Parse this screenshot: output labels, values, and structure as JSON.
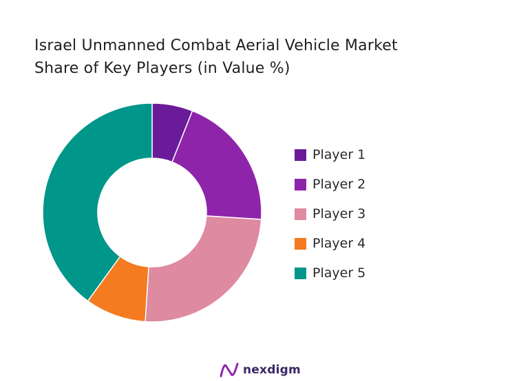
{
  "chart_data": {
    "type": "pie",
    "variant": "donut",
    "title_lines": [
      "Israel Unmanned Combat Aerial Vehicle Market",
      "Share of Key Players (in Value %)"
    ],
    "start_angle_deg": 0,
    "direction": "clockwise",
    "legend_position": "right",
    "slices": [
      {
        "label": "Player 1",
        "value": 6,
        "color": "#6a1b9a"
      },
      {
        "label": "Player 2",
        "value": 20,
        "color": "#8e24aa"
      },
      {
        "label": "Player 3",
        "value": 25,
        "color": "#de8aa0"
      },
      {
        "label": "Player 4",
        "value": 9,
        "color": "#f47b20"
      },
      {
        "label": "Player 5",
        "value": 40,
        "color": "#00968a"
      }
    ]
  },
  "brand": {
    "name": "nexdigm",
    "logo_icon": "nexdigm-logo-icon",
    "logo_color": "#8e24aa"
  }
}
